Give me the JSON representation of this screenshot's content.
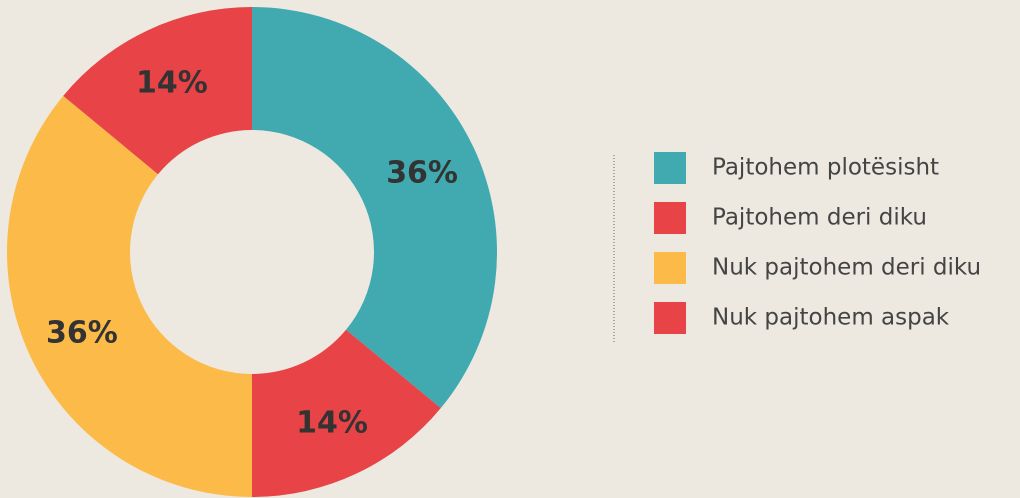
{
  "chart_data": {
    "type": "donut",
    "categories": [
      "Pajtohem plotësisht",
      "Pajtohem deri diku",
      "Nuk pajtohem deri diku",
      "Nuk pajtohem aspak"
    ],
    "values": [
      36,
      14,
      36,
      14
    ],
    "value_labels": [
      "36%",
      "14%",
      "36%",
      "14%"
    ],
    "colors": [
      "#41a9b0",
      "#e84346",
      "#fcbb48",
      "#e84346"
    ],
    "legend": "right"
  }
}
